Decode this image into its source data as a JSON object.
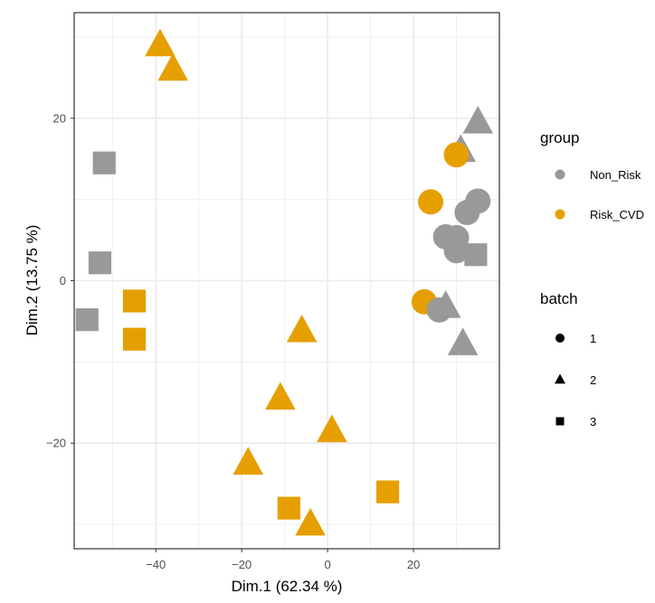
{
  "chart_data": {
    "type": "scatter",
    "title": "",
    "xlabel": "Dim.1 (62.34 %)",
    "ylabel": "Dim.2 (13.75 %)",
    "xlim": [
      -59,
      40
    ],
    "ylim": [
      -33,
      33
    ],
    "xticks": [
      -40,
      -20,
      0,
      20
    ],
    "yticks": [
      -20,
      0,
      20
    ],
    "grid": true,
    "legend_position": "right",
    "legends": [
      {
        "title": "group",
        "kind": "color",
        "entries": [
          {
            "label": "Non_Risk",
            "color": "#999999"
          },
          {
            "label": "Risk_CVD",
            "color": "#E69F00"
          }
        ]
      },
      {
        "title": "batch",
        "kind": "shape",
        "entries": [
          {
            "label": "1",
            "shape": "circle"
          },
          {
            "label": "2",
            "shape": "triangle"
          },
          {
            "label": "3",
            "shape": "square"
          }
        ]
      }
    ],
    "points": [
      {
        "x": -39,
        "y": 29,
        "group": "Risk_CVD",
        "batch": "2"
      },
      {
        "x": -36,
        "y": 26,
        "group": "Risk_CVD",
        "batch": "2"
      },
      {
        "x": -52,
        "y": 14.5,
        "group": "Non_Risk",
        "batch": "3"
      },
      {
        "x": -53,
        "y": 2.2,
        "group": "Non_Risk",
        "batch": "3"
      },
      {
        "x": -56,
        "y": -4.8,
        "group": "Non_Risk",
        "batch": "3"
      },
      {
        "x": -45,
        "y": -2.5,
        "group": "Risk_CVD",
        "batch": "3"
      },
      {
        "x": -45,
        "y": -7.2,
        "group": "Risk_CVD",
        "batch": "3"
      },
      {
        "x": -6,
        "y": -6.2,
        "group": "Risk_CVD",
        "batch": "2"
      },
      {
        "x": -11,
        "y": -14.5,
        "group": "Risk_CVD",
        "batch": "2"
      },
      {
        "x": 1,
        "y": -18.5,
        "group": "Risk_CVD",
        "batch": "2"
      },
      {
        "x": -18.5,
        "y": -22.5,
        "group": "Risk_CVD",
        "batch": "2"
      },
      {
        "x": -9,
        "y": -28,
        "group": "Risk_CVD",
        "batch": "3"
      },
      {
        "x": -4,
        "y": -30,
        "group": "Risk_CVD",
        "batch": "2"
      },
      {
        "x": 14,
        "y": -26,
        "group": "Risk_CVD",
        "batch": "3"
      },
      {
        "x": 35,
        "y": 19.5,
        "group": "Non_Risk",
        "batch": "2"
      },
      {
        "x": 31,
        "y": 16,
        "group": "Non_Risk",
        "batch": "2"
      },
      {
        "x": 30,
        "y": 15.5,
        "group": "Risk_CVD",
        "batch": "1"
      },
      {
        "x": 24,
        "y": 9.7,
        "group": "Risk_CVD",
        "batch": "1"
      },
      {
        "x": 35,
        "y": 9.8,
        "group": "Non_Risk",
        "batch": "1"
      },
      {
        "x": 32.5,
        "y": 8.4,
        "group": "Non_Risk",
        "batch": "1"
      },
      {
        "x": 27.5,
        "y": 5.4,
        "group": "Non_Risk",
        "batch": "1"
      },
      {
        "x": 30,
        "y": 5.3,
        "group": "Non_Risk",
        "batch": "1"
      },
      {
        "x": 30,
        "y": 3.7,
        "group": "Non_Risk",
        "batch": "1"
      },
      {
        "x": 34.5,
        "y": 3.2,
        "group": "Non_Risk",
        "batch": "3"
      },
      {
        "x": 22.5,
        "y": -2.6,
        "group": "Risk_CVD",
        "batch": "1"
      },
      {
        "x": 26,
        "y": -3.6,
        "group": "Non_Risk",
        "batch": "1"
      },
      {
        "x": 27.5,
        "y": -3.2,
        "group": "Non_Risk",
        "batch": "2"
      },
      {
        "x": 31.5,
        "y": -7.8,
        "group": "Non_Risk",
        "batch": "2"
      }
    ]
  }
}
